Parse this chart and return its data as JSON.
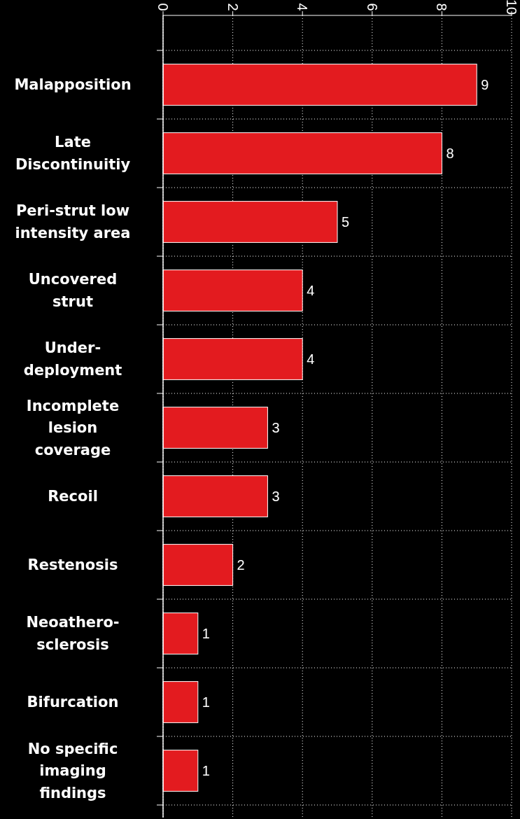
{
  "chart_data": {
    "type": "bar",
    "orientation": "horizontal",
    "categories": [
      "Malapposition",
      "Late Discontinuitiy",
      "Peri-strut low intensity area",
      "Uncovered strut",
      "Under-deployment",
      "Incomplete lesion coverage",
      "Recoil",
      "Restenosis",
      "Neoathero-sclerosis",
      "Bifurcation",
      "No specific imaging findings"
    ],
    "values": [
      9,
      8,
      5,
      4,
      4,
      3,
      3,
      2,
      1,
      1,
      1
    ],
    "color": "#e31b1f",
    "xlim": [
      0,
      10
    ],
    "xticks": [
      0,
      2,
      4,
      6,
      8,
      10
    ],
    "grid": true,
    "data_labels": true
  }
}
